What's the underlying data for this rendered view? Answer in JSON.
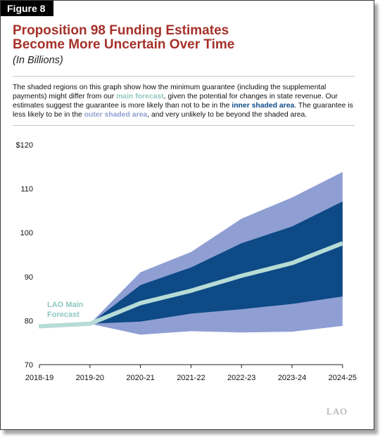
{
  "figure_label": "Figure 8",
  "title_line1": "Proposition 98 Funding Estimates",
  "title_line2": "Become More Uncertain Over Time",
  "subtitle": "(In Billions)",
  "description": {
    "p1": "The shaded regions on this graph show how the minimum guarantee (including the supplemental payments) might differ from our ",
    "main": "main forecast",
    "p2": ", given the potential for changes in state revenue. Our estimates suggest the guarantee is more likely than not to be in the ",
    "inner": "inner shaded area",
    "p3": ". The guarantee is less likely to be in the ",
    "outer": "outer shaded area",
    "p4": ", and very unlikely to be beyond the shaded area."
  },
  "logo": "LAO",
  "colors": {
    "outer_band": "#8f9fd3",
    "inner_band": "#0d4a86",
    "main_line": "#b7dcd6",
    "title": "#a5312a"
  },
  "chart_data": {
    "type": "area",
    "categories": [
      "2018-19",
      "2019-20",
      "2020-21",
      "2021-22",
      "2022-23",
      "2023-24",
      "2024-25"
    ],
    "y_tick_labels": [
      "$120",
      "110",
      "100",
      "90",
      "80",
      "70"
    ],
    "ylim": [
      70,
      120
    ],
    "main_forecast": [
      78.7,
      79.3,
      84.0,
      86.8,
      90.2,
      93.1,
      97.6
    ],
    "main_forecast_label_line1": "LAO Main",
    "main_forecast_label_line2": "Forecast",
    "inner_band": {
      "upper": [
        null,
        79.3,
        88.1,
        92.1,
        97.6,
        101.4,
        107.1
      ],
      "lower": [
        null,
        79.3,
        79.8,
        81.6,
        82.6,
        83.8,
        85.5
      ]
    },
    "outer_band": {
      "upper": [
        null,
        79.3,
        91.0,
        95.6,
        103.2,
        108.0,
        113.8
      ],
      "lower": [
        null,
        79.3,
        76.8,
        77.6,
        77.3,
        77.5,
        78.8
      ]
    },
    "grid": false,
    "legend": "none"
  }
}
